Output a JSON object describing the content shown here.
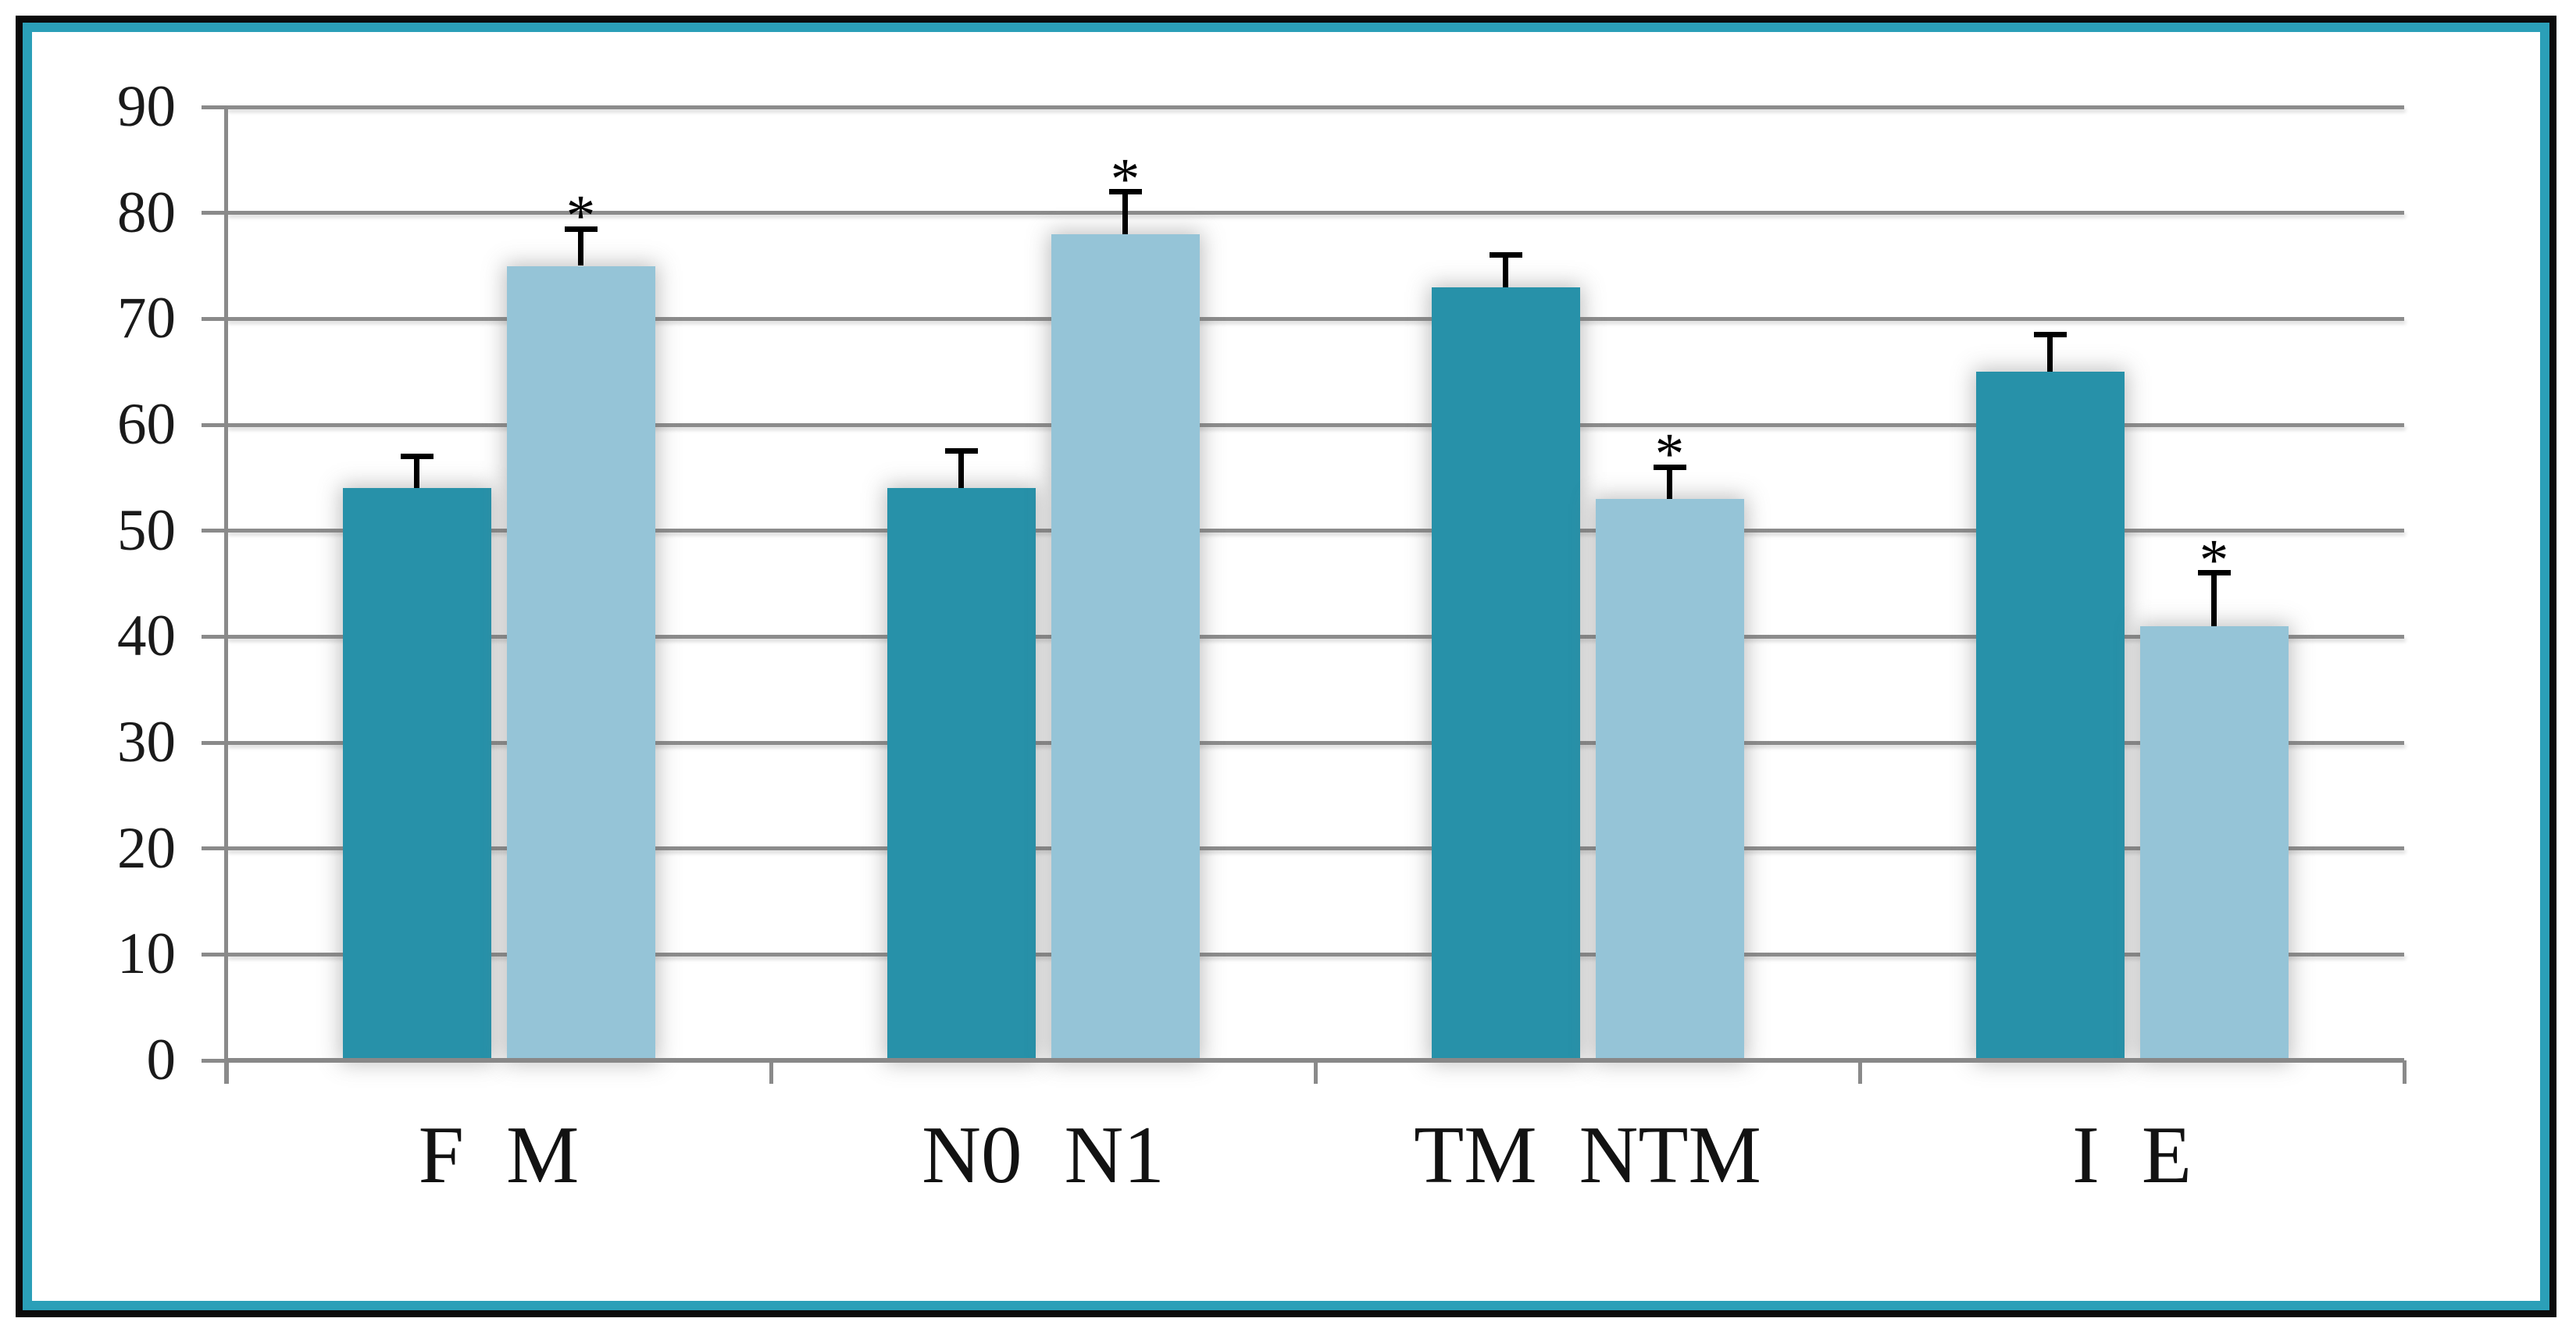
{
  "figure": {
    "border_outer_color": "#0b0b0b",
    "border_inner_color": "#2b9fb8",
    "background": "#ffffff"
  },
  "chart_data": {
    "type": "bar",
    "title": "",
    "xlabel": "",
    "ylabel": "",
    "grid": true,
    "legend": false,
    "significance_marker": "*",
    "y_axis": {
      "min": 0,
      "max": 90,
      "step": 10,
      "tick_labels": [
        "0",
        "10",
        "20",
        "30",
        "40",
        "50",
        "60",
        "70",
        "80",
        "90"
      ]
    },
    "series_names": [
      "dark",
      "light"
    ],
    "colors": {
      "dark_series": "#2791a9",
      "light_series": "#95c4d7",
      "gridline": "#8c8c8c",
      "axis": "#8a8a8a",
      "error_bar": "#000000",
      "text": "#1a1a1a"
    },
    "groups": [
      {
        "tick_label": "F M",
        "label_parts": [
          "F",
          "M"
        ],
        "bars": [
          {
            "label": "F",
            "series": "dark",
            "value": 54,
            "error": 3,
            "significant": false
          },
          {
            "label": "M",
            "series": "light",
            "value": 75,
            "error": 3.5,
            "significant": true
          }
        ]
      },
      {
        "tick_label": "N0 N1",
        "label_parts": [
          "N0",
          "N1"
        ],
        "bars": [
          {
            "label": "N0",
            "series": "dark",
            "value": 54,
            "error": 3.5,
            "significant": false
          },
          {
            "label": "N1",
            "series": "light",
            "value": 78,
            "error": 4,
            "significant": true
          }
        ]
      },
      {
        "tick_label": "TM NTM",
        "label_parts": [
          "TM",
          "NTM"
        ],
        "bars": [
          {
            "label": "TM",
            "series": "dark",
            "value": 73,
            "error": 3,
            "significant": false
          },
          {
            "label": "NTM",
            "series": "light",
            "value": 53,
            "error": 3,
            "significant": true
          }
        ]
      },
      {
        "tick_label": "I E",
        "label_parts": [
          "I",
          "E"
        ],
        "bars": [
          {
            "label": "I",
            "series": "dark",
            "value": 65,
            "error": 3.5,
            "significant": false
          },
          {
            "label": "E",
            "series": "light",
            "value": 41,
            "error": 5,
            "significant": true
          }
        ]
      }
    ]
  }
}
